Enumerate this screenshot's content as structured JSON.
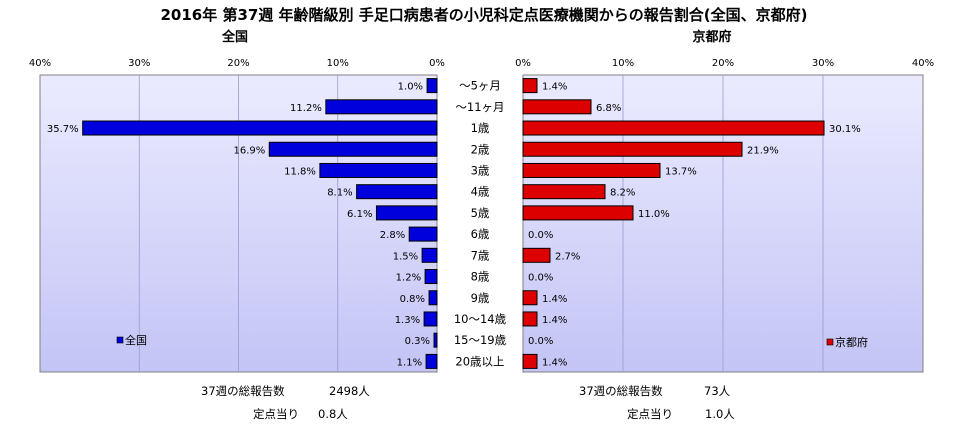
{
  "title": "2016年 第37週 年齢階級別 手足口病患者の小児科定点医療機関からの報告割合(全国、京都府)",
  "chart_data": [
    {
      "type": "bar",
      "orientation": "horizontal",
      "direction": "right-to-left",
      "title": "全国",
      "legend": "全国",
      "legend_position": "bottom-left",
      "color": "#0000dd",
      "xlim": [
        0,
        40
      ],
      "ticks": [
        "40%",
        "30%",
        "20%",
        "10%",
        "0%"
      ],
      "categories": [
        "～5ヶ月",
        "～11ヶ月",
        "1歳",
        "2歳",
        "3歳",
        "4歳",
        "5歳",
        "6歳",
        "7歳",
        "8歳",
        "9歳",
        "10～14歳",
        "15～19歳",
        "20歳以上"
      ],
      "values": [
        1.0,
        11.2,
        35.7,
        16.9,
        11.8,
        8.1,
        6.1,
        2.8,
        1.5,
        1.2,
        0.8,
        1.3,
        0.3,
        1.1
      ],
      "labels": [
        "1.0%",
        "11.2%",
        "35.7%",
        "16.9%",
        "11.8%",
        "8.1%",
        "6.1%",
        "2.8%",
        "1.5%",
        "1.2%",
        "0.8%",
        "1.3%",
        "0.3%",
        "1.1%"
      ]
    },
    {
      "type": "bar",
      "orientation": "horizontal",
      "direction": "left-to-right",
      "title": "京都府",
      "legend": "京都府",
      "legend_position": "bottom-right",
      "color": "#dd0000",
      "xlim": [
        0,
        40
      ],
      "ticks": [
        "0%",
        "10%",
        "20%",
        "30%",
        "40%"
      ],
      "categories": [
        "～5ヶ月",
        "～11ヶ月",
        "1歳",
        "2歳",
        "3歳",
        "4歳",
        "5歳",
        "6歳",
        "7歳",
        "8歳",
        "9歳",
        "10～14歳",
        "15～19歳",
        "20歳以上"
      ],
      "values": [
        1.4,
        6.8,
        30.1,
        21.9,
        13.7,
        8.2,
        11.0,
        0.0,
        2.7,
        0.0,
        1.4,
        1.4,
        0.0,
        1.4
      ],
      "labels": [
        "1.4%",
        "6.8%",
        "30.1%",
        "21.9%",
        "13.7%",
        "8.2%",
        "11.0%",
        "0.0%",
        "2.7%",
        "0.0%",
        "1.4%",
        "1.4%",
        "0.0%",
        "1.4%"
      ]
    }
  ],
  "footer": {
    "left": {
      "total_label": "37週の総報告数",
      "total_value": "2498人",
      "per_label": "定点当り",
      "per_value": "0.8人"
    },
    "right": {
      "total_label": "37週の総報告数",
      "total_value": "73人",
      "per_label": "定点当り",
      "per_value": "1.0人"
    }
  },
  "colors": {
    "plot_bg_top": "#ebebff",
    "plot_bg_bottom": "#c4c4f6",
    "national": "#0000dd",
    "kyoto": "#dd0000"
  }
}
